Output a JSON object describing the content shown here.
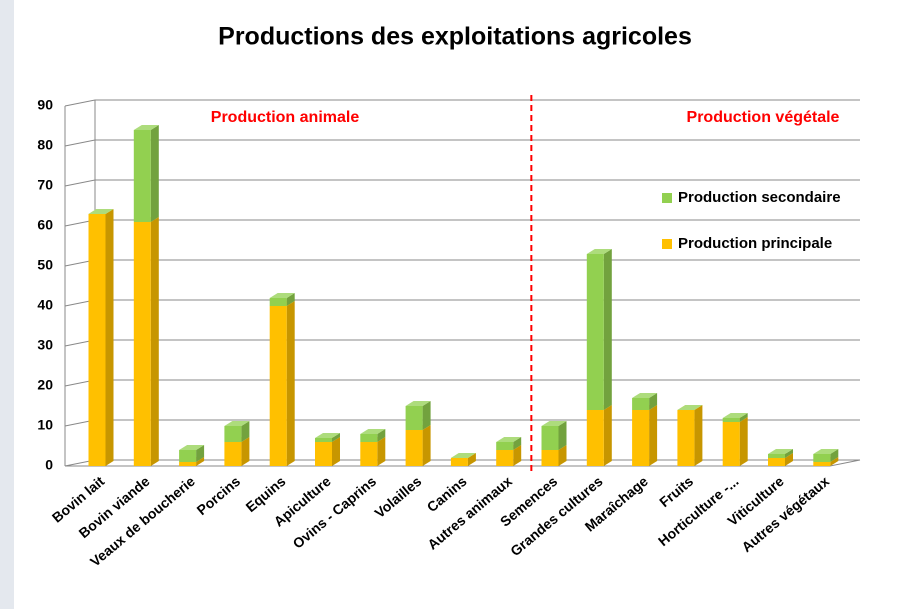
{
  "chart_data": {
    "type": "bar",
    "stacked": true,
    "title": "Productions des exploitations agricoles",
    "annotations": [
      "Production animale",
      "Production végétale"
    ],
    "categories": [
      "Bovin lait",
      "Bovin viande",
      "Veaux de boucherie",
      "Porcins",
      "Equins",
      "Apiculture",
      "Ovins - Caprins",
      "Volailles",
      "Canins",
      "Autres animaux",
      "Semences",
      "Grandes cultures",
      "Maraîchage",
      "Fruits",
      "Horticulture -...",
      "Viticulture",
      "Autres végétaux"
    ],
    "series": [
      {
        "name": "Production principale",
        "color": "#ffc000",
        "values": [
          63,
          61,
          1,
          6,
          40,
          6,
          6,
          9,
          2,
          4,
          4,
          14,
          14,
          14,
          11,
          2,
          1
        ]
      },
      {
        "name": "Production secondaire",
        "color": "#92d050",
        "values": [
          0,
          23,
          3,
          4,
          2,
          1,
          2,
          6,
          0,
          2,
          6,
          39,
          3,
          0,
          1,
          1,
          2
        ]
      }
    ],
    "ylim": [
      0,
      90
    ],
    "yticks": [
      0,
      10,
      20,
      30,
      40,
      50,
      60,
      70,
      80,
      90
    ],
    "grid": true,
    "legend": "right"
  }
}
